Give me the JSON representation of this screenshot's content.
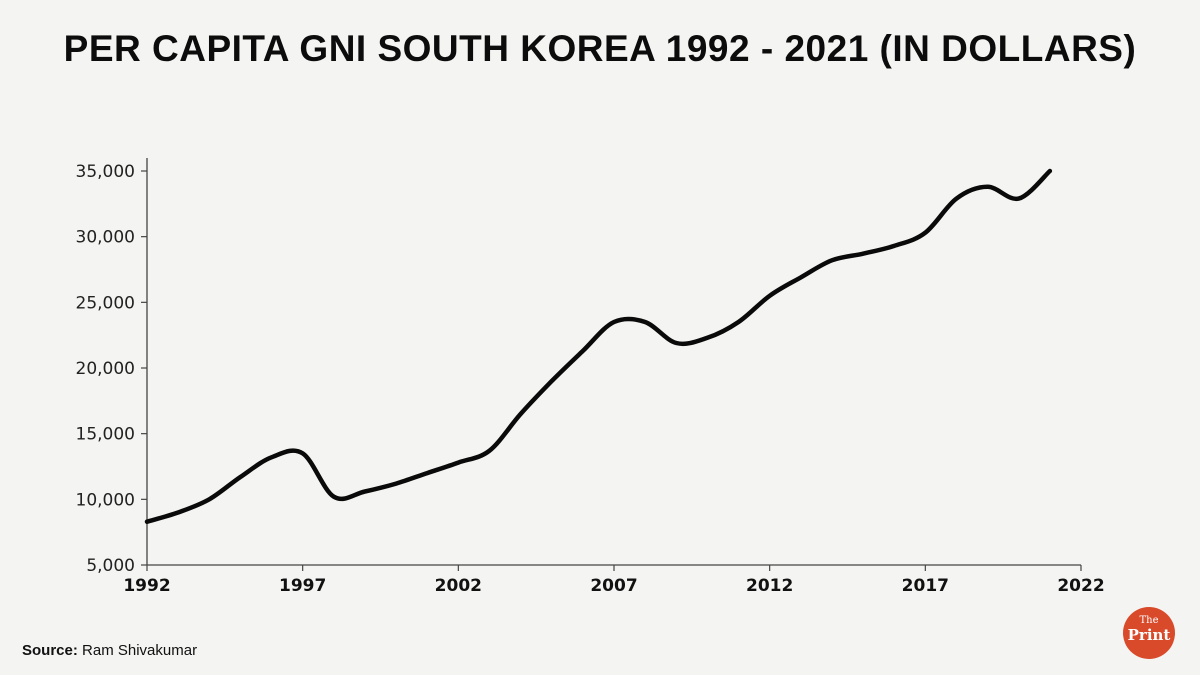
{
  "header": {
    "title": "PER CAPITA GNI SOUTH KOREA 1992 - 2021 (IN DOLLARS)"
  },
  "footer": {
    "source_label": "Source:",
    "source_name": "Ram Shivakumar"
  },
  "logo": {
    "line1": "The",
    "line2": "Print",
    "color": "#d94a2b"
  },
  "chart_data": {
    "type": "line",
    "title": "PER CAPITA GNI SOUTH KOREA 1992 - 2021 (IN DOLLARS)",
    "xlabel": "",
    "ylabel": "",
    "xlim": [
      1992,
      2022
    ],
    "ylim": [
      5000,
      35000
    ],
    "x_ticks": [
      1992,
      1997,
      2002,
      2007,
      2012,
      2017,
      2022
    ],
    "x_tick_labels": [
      "1992",
      "1997",
      "2002",
      "2007",
      "2012",
      "2017",
      "2022"
    ],
    "y_ticks": [
      5000,
      10000,
      15000,
      20000,
      25000,
      30000,
      35000
    ],
    "y_tick_labels": [
      "5,000",
      "10,000",
      "15,000",
      "20,000",
      "25,000",
      "30,000",
      "35,000"
    ],
    "grid": false,
    "line_color": "#0a0a0a",
    "series": [
      {
        "name": "Per capita GNI",
        "x": [
          1992,
          1993,
          1994,
          1995,
          1996,
          1997,
          1998,
          1999,
          2000,
          2001,
          2002,
          2003,
          2004,
          2005,
          2006,
          2007,
          2008,
          2009,
          2010,
          2011,
          2012,
          2013,
          2014,
          2015,
          2016,
          2017,
          2018,
          2019,
          2020,
          2021
        ],
        "values": [
          8300,
          9000,
          10000,
          11700,
          13200,
          13500,
          10200,
          10600,
          11200,
          12000,
          12800,
          13700,
          16500,
          19000,
          21300,
          23500,
          23500,
          21900,
          22300,
          23500,
          25500,
          26900,
          28200,
          28700,
          29300,
          30300,
          32900,
          33800,
          32900,
          35000
        ]
      }
    ]
  }
}
